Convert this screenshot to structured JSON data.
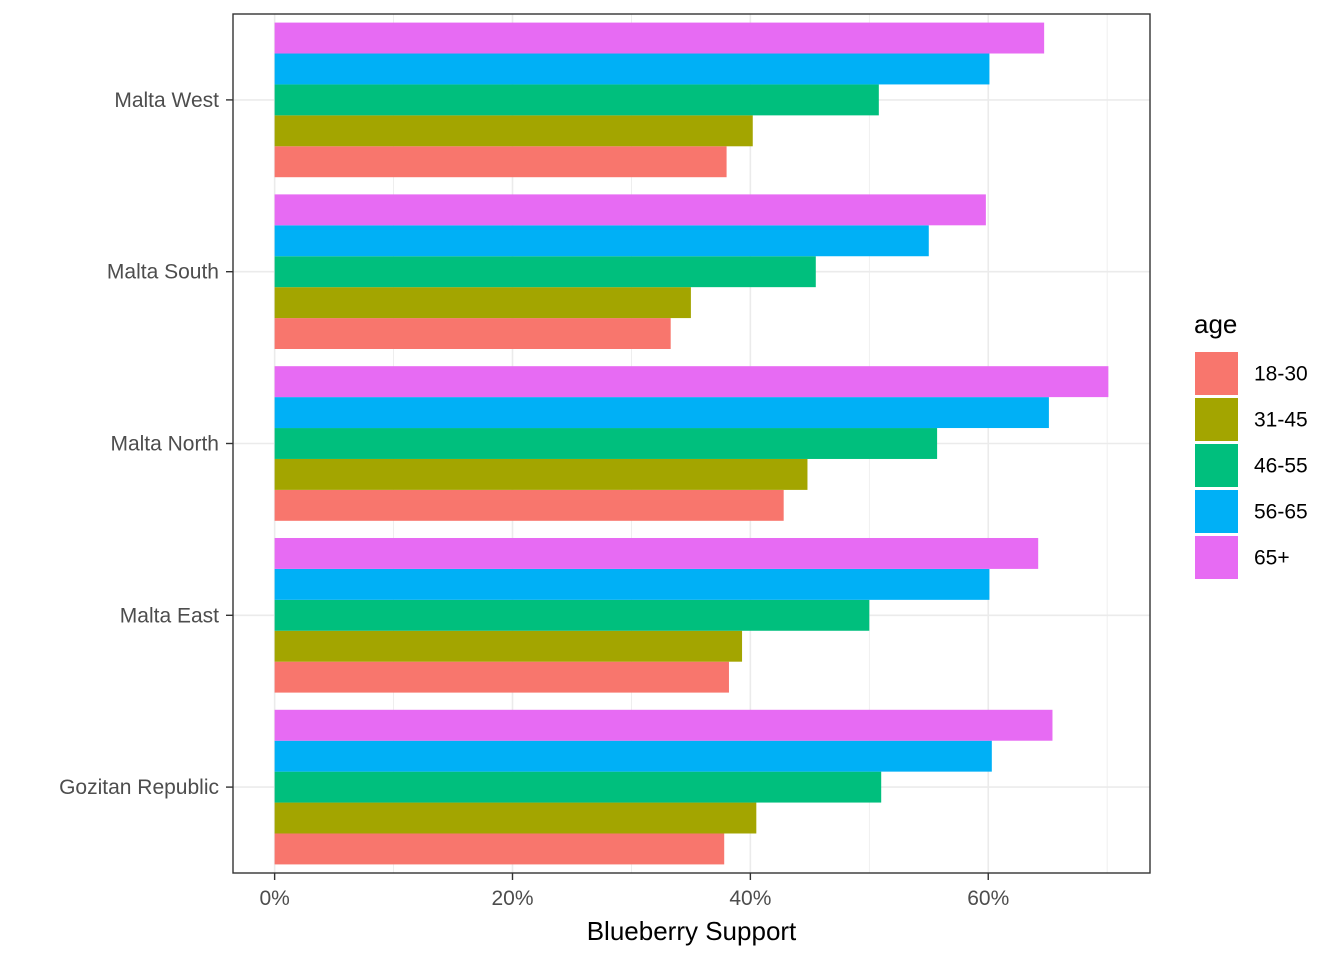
{
  "chart_data": {
    "type": "bar",
    "orientation": "horizontal",
    "categories": [
      "Gozitan Republic",
      "Malta East",
      "Malta North",
      "Malta South",
      "Malta West"
    ],
    "series": [
      {
        "name": "18-30",
        "color": "#F8766D",
        "values": [
          37.8,
          38.2,
          42.8,
          33.3,
          38.0
        ]
      },
      {
        "name": "31-45",
        "color": "#A3A500",
        "values": [
          40.5,
          39.3,
          44.8,
          35.0,
          40.2
        ]
      },
      {
        "name": "46-55",
        "color": "#00BF7D",
        "values": [
          51.0,
          50.0,
          55.7,
          45.5,
          50.8
        ]
      },
      {
        "name": "56-65",
        "color": "#00B0F6",
        "values": [
          60.3,
          60.1,
          65.1,
          55.0,
          60.1
        ]
      },
      {
        "name": "65+",
        "color": "#E76BF3",
        "values": [
          65.4,
          64.2,
          70.1,
          59.8,
          64.7
        ]
      }
    ],
    "xlabel": "Blueberry Support",
    "ylabel": "",
    "xlim": [
      -3.5,
      73.6
    ],
    "x_ticks": [
      0,
      20,
      40,
      60
    ],
    "x_tick_labels": [
      "0%",
      "20%",
      "40%",
      "60%"
    ],
    "grid": true,
    "legend": {
      "title": "age",
      "position": "right"
    }
  }
}
